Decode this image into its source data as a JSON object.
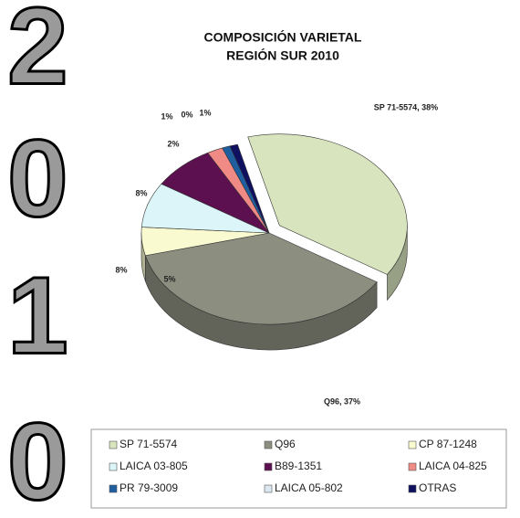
{
  "side_digits": [
    "2",
    "0",
    "1",
    "0"
  ],
  "chart_data": {
    "type": "pie",
    "title": "COMPOSICIÓN VARIETAL",
    "subtitle": "REGIÓN SUR 2010",
    "series": [
      {
        "name": "SP 71-5574",
        "color": "#d7e4bd",
        "values": [
          38
        ],
        "value_labels": [
          "SP 71-5574, 38%"
        ]
      },
      {
        "name": "Q96",
        "color": "#8c8f80",
        "values": [
          37
        ],
        "value_labels": [
          "Q96, 37%"
        ]
      },
      {
        "name": "CP 87-1248",
        "color": "#fafad0",
        "values": [
          5
        ],
        "value_labels": [
          "5%"
        ]
      },
      {
        "name": "LAICA 03-805",
        "color": "#dbf5f8",
        "values": [
          8
        ],
        "value_labels": [
          "8%"
        ]
      },
      {
        "name": "B89-1351",
        "color": "#5c1050",
        "values": [
          8
        ],
        "value_labels": [
          "8%"
        ]
      },
      {
        "name": "LAICA 04-825",
        "color": "#f08a84",
        "values": [
          2
        ],
        "value_labels": [
          "2%"
        ]
      },
      {
        "name": "PR 79-3009",
        "color": "#1f5fa0",
        "values": [
          1
        ],
        "value_labels": [
          "1%"
        ]
      },
      {
        "name": "LAICA 05-802",
        "color": "#dce8f0",
        "values": [
          0
        ],
        "value_labels": [
          "0%"
        ]
      },
      {
        "name": "OTRAS",
        "color": "#101060",
        "values": [
          1
        ],
        "value_labels": [
          "1%"
        ]
      }
    ],
    "exploded": "SP 71-5574"
  }
}
